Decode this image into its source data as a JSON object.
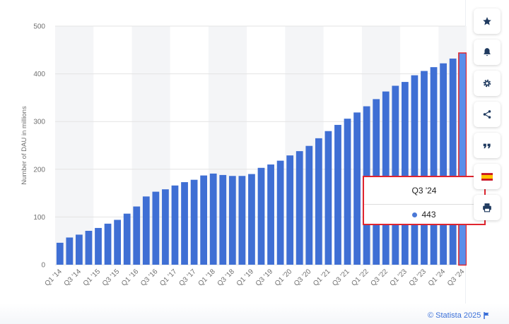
{
  "chart_data": {
    "type": "bar",
    "ylabel": "Number of DAU in millions",
    "ylim": [
      0,
      500
    ],
    "yticks": [
      0,
      100,
      200,
      300,
      400,
      500
    ],
    "grid": true,
    "categories": [
      "Q1 '14",
      "Q2 '14",
      "Q3 '14",
      "Q4 '14",
      "Q1 '15",
      "Q2 '15",
      "Q3 '15",
      "Q4 '15",
      "Q1 '16",
      "Q2 '16",
      "Q3 '16",
      "Q4 '16",
      "Q1 '17",
      "Q2 '17",
      "Q3 '17",
      "Q4 '17",
      "Q1 '18",
      "Q2 '18",
      "Q3 '18",
      "Q4 '18",
      "Q1 '19",
      "Q2 '19",
      "Q3 '19",
      "Q4 '19",
      "Q1 '20",
      "Q2 '20",
      "Q3 '20",
      "Q4 '20",
      "Q1 '21",
      "Q2 '21",
      "Q3 '21",
      "Q4 '21",
      "Q1 '22",
      "Q2 '22",
      "Q3 '22",
      "Q4 '22",
      "Q1 '23",
      "Q2 '23",
      "Q3 '23",
      "Q4 '23",
      "Q1 '24",
      "Q2 '24",
      "Q3 '24"
    ],
    "values": [
      46,
      57,
      63,
      71,
      77,
      86,
      94,
      107,
      122,
      143,
      153,
      158,
      166,
      173,
      178,
      187,
      191,
      188,
      186,
      186,
      190,
      203,
      210,
      218,
      229,
      238,
      249,
      265,
      280,
      293,
      306,
      319,
      332,
      347,
      363,
      375,
      383,
      397,
      406,
      414,
      422,
      432,
      443
    ],
    "highlight_index": 42,
    "bar_color": "#3f6fd4",
    "highlight_color": "#5a8eea"
  },
  "tooltip": {
    "title": "Q3 '24",
    "value": "443"
  },
  "sidebar": {
    "buttons": [
      {
        "icon": "star-icon",
        "name": "favorite-button"
      },
      {
        "icon": "bell-icon",
        "name": "notification-button"
      },
      {
        "icon": "gear-icon",
        "name": "settings-button"
      },
      {
        "icon": "share-icon",
        "name": "share-button"
      },
      {
        "icon": "quote-icon",
        "name": "cite-button"
      },
      {
        "icon": "spain-flag-icon",
        "name": "language-button"
      },
      {
        "icon": "print-icon",
        "name": "print-button"
      }
    ]
  },
  "credit": {
    "text": "© Statista 2025"
  },
  "colors": {
    "accent": "#3a6fd8",
    "tooltip_border": "#e0252f"
  }
}
